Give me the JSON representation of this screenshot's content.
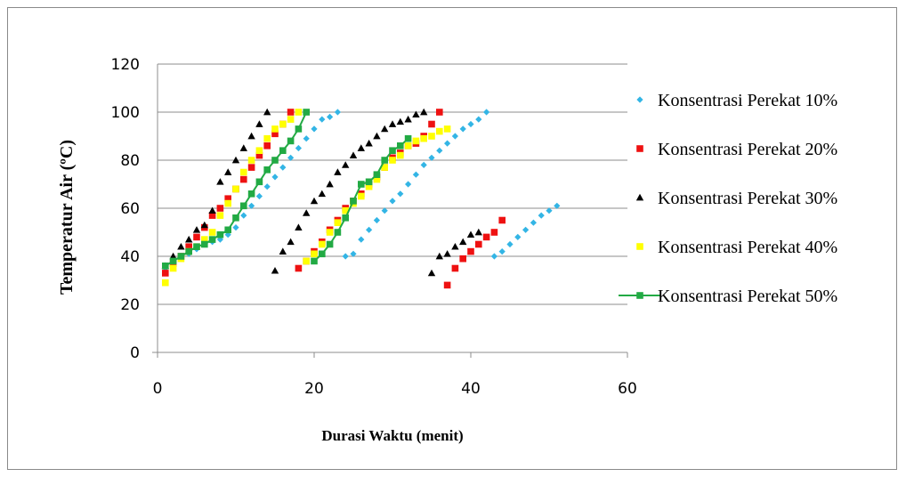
{
  "chart_data": {
    "type": "scatter",
    "title": "",
    "xlabel": "Durasi Waktu (menit)",
    "ylabel": "Temperatur Air (ºC)",
    "xlim": [
      0,
      60
    ],
    "ylim": [
      0,
      120
    ],
    "x_ticks": [
      0,
      20,
      40,
      60
    ],
    "y_ticks": [
      0,
      20,
      40,
      60,
      80,
      100,
      120
    ],
    "grid": "horizontal",
    "legend_position": "right",
    "series": [
      {
        "name": "Konsentrasi Perekat 10%",
        "color": "#33b5e5",
        "marker": "diamond",
        "line": false,
        "points": [
          [
            1,
            35
          ],
          [
            2,
            37
          ],
          [
            3,
            39
          ],
          [
            4,
            41
          ],
          [
            5,
            43
          ],
          [
            6,
            45
          ],
          [
            7,
            46
          ],
          [
            8,
            47
          ],
          [
            9,
            49
          ],
          [
            10,
            52
          ],
          [
            11,
            57
          ],
          [
            12,
            61
          ],
          [
            13,
            65
          ],
          [
            14,
            69
          ],
          [
            15,
            73
          ],
          [
            16,
            77
          ],
          [
            17,
            81
          ],
          [
            18,
            85
          ],
          [
            19,
            89
          ],
          [
            20,
            93
          ],
          [
            21,
            97
          ],
          [
            22,
            98
          ],
          [
            23,
            100
          ],
          [
            24,
            40
          ],
          [
            25,
            41
          ],
          [
            26,
            47
          ],
          [
            27,
            51
          ],
          [
            28,
            55
          ],
          [
            29,
            59
          ],
          [
            30,
            63
          ],
          [
            31,
            66
          ],
          [
            32,
            70
          ],
          [
            33,
            74
          ],
          [
            34,
            78
          ],
          [
            35,
            81
          ],
          [
            36,
            84
          ],
          [
            37,
            87
          ],
          [
            38,
            90
          ],
          [
            39,
            93
          ],
          [
            40,
            95
          ],
          [
            41,
            97
          ],
          [
            42,
            100
          ],
          [
            43,
            40
          ],
          [
            44,
            42
          ],
          [
            45,
            45
          ],
          [
            46,
            48
          ],
          [
            47,
            51
          ],
          [
            48,
            54
          ],
          [
            49,
            57
          ],
          [
            50,
            59
          ],
          [
            51,
            61
          ]
        ]
      },
      {
        "name": "Konsentrasi Perekat 20%",
        "color": "#ee1111",
        "marker": "square",
        "line": false,
        "points": [
          [
            1,
            33
          ],
          [
            2,
            37
          ],
          [
            3,
            40
          ],
          [
            4,
            44
          ],
          [
            5,
            48
          ],
          [
            6,
            52
          ],
          [
            7,
            57
          ],
          [
            8,
            60
          ],
          [
            9,
            64
          ],
          [
            10,
            68
          ],
          [
            11,
            72
          ],
          [
            12,
            77
          ],
          [
            13,
            82
          ],
          [
            14,
            86
          ],
          [
            15,
            91
          ],
          [
            16,
            95
          ],
          [
            17,
            100
          ],
          [
            18,
            35
          ],
          [
            19,
            38
          ],
          [
            20,
            42
          ],
          [
            21,
            46
          ],
          [
            22,
            51
          ],
          [
            23,
            55
          ],
          [
            24,
            60
          ],
          [
            25,
            63
          ],
          [
            26,
            66
          ],
          [
            27,
            70
          ],
          [
            28,
            73
          ],
          [
            29,
            77
          ],
          [
            30,
            81
          ],
          [
            31,
            83
          ],
          [
            32,
            86
          ],
          [
            33,
            87
          ],
          [
            34,
            90
          ],
          [
            35,
            95
          ],
          [
            36,
            100
          ],
          [
            37,
            28
          ],
          [
            38,
            35
          ],
          [
            39,
            39
          ],
          [
            40,
            42
          ],
          [
            41,
            45
          ],
          [
            42,
            48
          ],
          [
            43,
            50
          ],
          [
            44,
            55
          ]
        ]
      },
      {
        "name": "Konsentrasi Perekat 30%",
        "color": "#000000",
        "marker": "triangle",
        "line": false,
        "points": [
          [
            1,
            36
          ],
          [
            2,
            40
          ],
          [
            3,
            44
          ],
          [
            4,
            47
          ],
          [
            5,
            51
          ],
          [
            6,
            53
          ],
          [
            7,
            59
          ],
          [
            8,
            71
          ],
          [
            9,
            75
          ],
          [
            10,
            80
          ],
          [
            11,
            85
          ],
          [
            12,
            90
          ],
          [
            13,
            95
          ],
          [
            14,
            100
          ],
          [
            15,
            34
          ],
          [
            16,
            42
          ],
          [
            17,
            46
          ],
          [
            18,
            52
          ],
          [
            19,
            58
          ],
          [
            20,
            63
          ],
          [
            21,
            66
          ],
          [
            22,
            70
          ],
          [
            23,
            75
          ],
          [
            24,
            78
          ],
          [
            25,
            82
          ],
          [
            26,
            85
          ],
          [
            27,
            87
          ],
          [
            28,
            90
          ],
          [
            29,
            93
          ],
          [
            30,
            95
          ],
          [
            31,
            96
          ],
          [
            32,
            97
          ],
          [
            33,
            99
          ],
          [
            34,
            100
          ],
          [
            35,
            33
          ],
          [
            36,
            40
          ],
          [
            37,
            41
          ],
          [
            38,
            44
          ],
          [
            39,
            46
          ],
          [
            40,
            49
          ],
          [
            41,
            50
          ]
        ]
      },
      {
        "name": "Konsentrasi Perekat 40%",
        "color": "#ffff00",
        "marker": "square",
        "line": false,
        "points": [
          [
            1,
            29
          ],
          [
            2,
            35
          ],
          [
            3,
            39
          ],
          [
            4,
            42
          ],
          [
            5,
            44
          ],
          [
            6,
            47
          ],
          [
            7,
            50
          ],
          [
            8,
            57
          ],
          [
            9,
            62
          ],
          [
            10,
            68
          ],
          [
            11,
            75
          ],
          [
            12,
            80
          ],
          [
            13,
            84
          ],
          [
            14,
            89
          ],
          [
            15,
            93
          ],
          [
            16,
            95
          ],
          [
            17,
            97
          ],
          [
            18,
            100
          ],
          [
            19,
            38
          ],
          [
            20,
            41
          ],
          [
            21,
            45
          ],
          [
            22,
            50
          ],
          [
            23,
            54
          ],
          [
            24,
            59
          ],
          [
            25,
            62
          ],
          [
            26,
            65
          ],
          [
            27,
            69
          ],
          [
            28,
            72
          ],
          [
            29,
            77
          ],
          [
            30,
            80
          ],
          [
            31,
            82
          ],
          [
            32,
            86
          ],
          [
            33,
            88
          ],
          [
            34,
            89
          ],
          [
            35,
            90
          ],
          [
            36,
            92
          ],
          [
            37,
            93
          ]
        ]
      },
      {
        "name": "Konsentrasi Perekat 50%",
        "color": "#22aa44",
        "marker": "square",
        "line": true,
        "segments": [
          [
            [
              1,
              36
            ],
            [
              2,
              38
            ],
            [
              3,
              40
            ],
            [
              4,
              42
            ],
            [
              5,
              44
            ],
            [
              6,
              45
            ],
            [
              7,
              47
            ],
            [
              8,
              49
            ],
            [
              9,
              51
            ],
            [
              10,
              56
            ],
            [
              11,
              61
            ],
            [
              12,
              66
            ],
            [
              13,
              71
            ],
            [
              14,
              76
            ],
            [
              15,
              80
            ],
            [
              16,
              84
            ],
            [
              17,
              88
            ],
            [
              18,
              93
            ],
            [
              19,
              100
            ]
          ],
          [
            [
              20,
              38
            ],
            [
              21,
              41
            ],
            [
              22,
              45
            ],
            [
              23,
              50
            ],
            [
              24,
              56
            ],
            [
              25,
              63
            ],
            [
              26,
              70
            ],
            [
              27,
              71
            ],
            [
              28,
              74
            ],
            [
              29,
              80
            ],
            [
              30,
              84
            ],
            [
              31,
              86
            ],
            [
              32,
              89
            ]
          ]
        ]
      }
    ]
  }
}
